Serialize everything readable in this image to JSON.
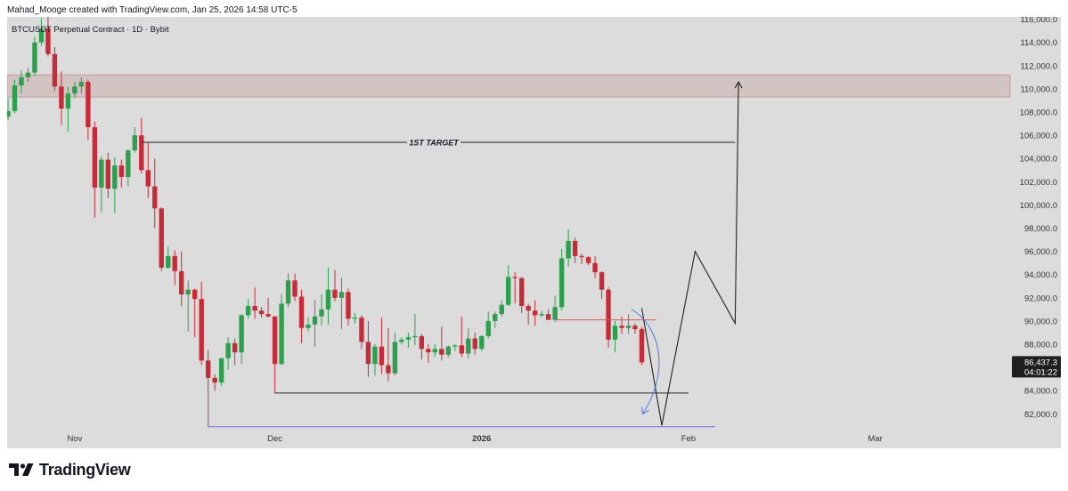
{
  "attribution": "Mahad_Mooge created with TradingView.com, Jan 25, 2026 14:58 UTC-5",
  "brand": "TradingView",
  "symbol_line": "BTCUSDT Perpetual Contract · 1D · Bybit",
  "colors": {
    "bg": "#dcdcdc",
    "up": "#2e9e4f",
    "down": "#c62b39",
    "zone_fill": "#d3c4c4",
    "zone_border": "#c59a9a",
    "line": "#222222",
    "purple": "#8e6bd6",
    "red_level": "#d85858",
    "blue_arrow": "#4f7ae3",
    "axis_text": "#333333",
    "price_label_bg": "#1e1e1e"
  },
  "chart_data": {
    "type": "candlestick",
    "y_axis": {
      "ticks": [
        "82,000.0",
        "84,000.0",
        "86,000.0",
        "88,000.0",
        "90,000.0",
        "92,000.0",
        "94,000.0",
        "96,000.0",
        "98,000.0",
        "100,000.0",
        "102,000.0",
        "104,000.0",
        "106,000.0",
        "108,000.0",
        "110,000.0",
        "112,000.0",
        "114,000.0",
        "116,000.0"
      ],
      "tick_values": [
        82000,
        84000,
        86000,
        88000,
        90000,
        92000,
        94000,
        96000,
        98000,
        100000,
        102000,
        104000,
        106000,
        108000,
        110000,
        112000,
        114000,
        116000
      ],
      "ylim": [
        80800,
        116200
      ]
    },
    "x_axis": {
      "start_date": "2025-10-22",
      "end_date": "2026-03-12",
      "labels": [
        {
          "text": "Nov",
          "date": "2025-11-01",
          "bold": false
        },
        {
          "text": "Dec",
          "date": "2025-12-01",
          "bold": false
        },
        {
          "text": "2026",
          "date": "2026-01-01",
          "bold": true
        },
        {
          "text": "Feb",
          "date": "2026-02-01",
          "bold": false
        },
        {
          "text": "Mar",
          "date": "2026-03-01",
          "bold": false
        }
      ]
    },
    "candles": [
      {
        "d": "2025-10-22",
        "o": 107600,
        "h": 109200,
        "l": 107300,
        "c": 108100
      },
      {
        "d": "2025-10-23",
        "o": 108100,
        "h": 110800,
        "l": 107900,
        "c": 110300
      },
      {
        "d": "2025-10-24",
        "o": 110300,
        "h": 111600,
        "l": 109600,
        "c": 111000
      },
      {
        "d": "2025-10-25",
        "o": 111000,
        "h": 111800,
        "l": 110600,
        "c": 111400
      },
      {
        "d": "2025-10-26",
        "o": 111400,
        "h": 114500,
        "l": 111100,
        "c": 114000
      },
      {
        "d": "2025-10-27",
        "o": 114000,
        "h": 116100,
        "l": 113700,
        "c": 115200
      },
      {
        "d": "2025-10-28",
        "o": 115200,
        "h": 116200,
        "l": 112800,
        "c": 113000
      },
      {
        "d": "2025-10-29",
        "o": 113000,
        "h": 113600,
        "l": 109800,
        "c": 110200
      },
      {
        "d": "2025-10-30",
        "o": 110200,
        "h": 111500,
        "l": 106900,
        "c": 108300
      },
      {
        "d": "2025-10-31",
        "o": 108300,
        "h": 110200,
        "l": 106300,
        "c": 109600
      },
      {
        "d": "2025-11-01",
        "o": 109600,
        "h": 110600,
        "l": 109200,
        "c": 110200
      },
      {
        "d": "2025-11-02",
        "o": 110200,
        "h": 111000,
        "l": 109600,
        "c": 110600
      },
      {
        "d": "2025-11-03",
        "o": 110600,
        "h": 110800,
        "l": 105600,
        "c": 106700
      },
      {
        "d": "2025-11-04",
        "o": 106700,
        "h": 107200,
        "l": 98900,
        "c": 101500
      },
      {
        "d": "2025-11-05",
        "o": 101500,
        "h": 104200,
        "l": 99400,
        "c": 103900
      },
      {
        "d": "2025-11-06",
        "o": 103900,
        "h": 104500,
        "l": 100600,
        "c": 101400
      },
      {
        "d": "2025-11-07",
        "o": 101400,
        "h": 104100,
        "l": 99300,
        "c": 103400
      },
      {
        "d": "2025-11-08",
        "o": 103400,
        "h": 103900,
        "l": 101500,
        "c": 102400
      },
      {
        "d": "2025-11-09",
        "o": 102400,
        "h": 104800,
        "l": 101600,
        "c": 104700
      },
      {
        "d": "2025-11-10",
        "o": 104700,
        "h": 106700,
        "l": 104500,
        "c": 106000
      },
      {
        "d": "2025-11-11",
        "o": 106000,
        "h": 107500,
        "l": 102700,
        "c": 103000
      },
      {
        "d": "2025-11-12",
        "o": 103000,
        "h": 105400,
        "l": 100600,
        "c": 101600
      },
      {
        "d": "2025-11-13",
        "o": 101600,
        "h": 104000,
        "l": 98000,
        "c": 99700
      },
      {
        "d": "2025-11-14",
        "o": 99700,
        "h": 99800,
        "l": 94300,
        "c": 94600
      },
      {
        "d": "2025-11-15",
        "o": 94600,
        "h": 96400,
        "l": 94500,
        "c": 95600
      },
      {
        "d": "2025-11-16",
        "o": 95600,
        "h": 96100,
        "l": 93100,
        "c": 94300
      },
      {
        "d": "2025-11-17",
        "o": 94300,
        "h": 96000,
        "l": 91300,
        "c": 92300
      },
      {
        "d": "2025-11-18",
        "o": 92300,
        "h": 93500,
        "l": 89100,
        "c": 92700
      },
      {
        "d": "2025-11-19",
        "o": 92700,
        "h": 92800,
        "l": 88600,
        "c": 91900
      },
      {
        "d": "2025-11-20",
        "o": 91900,
        "h": 93400,
        "l": 86200,
        "c": 86600
      },
      {
        "d": "2025-11-21",
        "o": 86600,
        "h": 87500,
        "l": 80900,
        "c": 85100
      },
      {
        "d": "2025-11-22",
        "o": 85100,
        "h": 85400,
        "l": 84000,
        "c": 84700
      },
      {
        "d": "2025-11-23",
        "o": 84700,
        "h": 86800,
        "l": 84400,
        "c": 86800
      },
      {
        "d": "2025-11-24",
        "o": 86800,
        "h": 88600,
        "l": 85800,
        "c": 88100
      },
      {
        "d": "2025-11-25",
        "o": 88100,
        "h": 88500,
        "l": 86200,
        "c": 87300
      },
      {
        "d": "2025-11-26",
        "o": 87300,
        "h": 90600,
        "l": 86300,
        "c": 90500
      },
      {
        "d": "2025-11-27",
        "o": 90500,
        "h": 91900,
        "l": 90200,
        "c": 91300
      },
      {
        "d": "2025-11-28",
        "o": 91300,
        "h": 92900,
        "l": 90200,
        "c": 90900
      },
      {
        "d": "2025-11-29",
        "o": 90900,
        "h": 91200,
        "l": 90300,
        "c": 90600
      },
      {
        "d": "2025-11-30",
        "o": 90600,
        "h": 92000,
        "l": 90300,
        "c": 90400
      },
      {
        "d": "2025-12-01",
        "o": 90400,
        "h": 90400,
        "l": 83800,
        "c": 86300
      },
      {
        "d": "2025-12-02",
        "o": 86300,
        "h": 92300,
        "l": 86200,
        "c": 91500
      },
      {
        "d": "2025-12-03",
        "o": 91500,
        "h": 94100,
        "l": 91200,
        "c": 93500
      },
      {
        "d": "2025-12-04",
        "o": 93500,
        "h": 94100,
        "l": 91700,
        "c": 92100
      },
      {
        "d": "2025-12-05",
        "o": 92100,
        "h": 92700,
        "l": 88100,
        "c": 89400
      },
      {
        "d": "2025-12-06",
        "o": 89400,
        "h": 90300,
        "l": 89100,
        "c": 89700
      },
      {
        "d": "2025-12-07",
        "o": 89700,
        "h": 91800,
        "l": 87800,
        "c": 90400
      },
      {
        "d": "2025-12-08",
        "o": 90400,
        "h": 92300,
        "l": 89600,
        "c": 91000
      },
      {
        "d": "2025-12-09",
        "o": 91000,
        "h": 94600,
        "l": 89700,
        "c": 92700
      },
      {
        "d": "2025-12-10",
        "o": 92700,
        "h": 94400,
        "l": 91700,
        "c": 92000
      },
      {
        "d": "2025-12-11",
        "o": 92000,
        "h": 93700,
        "l": 89300,
        "c": 92500
      },
      {
        "d": "2025-12-12",
        "o": 92500,
        "h": 92800,
        "l": 89600,
        "c": 90200
      },
      {
        "d": "2025-12-13",
        "o": 90200,
        "h": 90700,
        "l": 89800,
        "c": 90300
      },
      {
        "d": "2025-12-14",
        "o": 90300,
        "h": 90500,
        "l": 87600,
        "c": 88200
      },
      {
        "d": "2025-12-15",
        "o": 88200,
        "h": 90000,
        "l": 85200,
        "c": 86300
      },
      {
        "d": "2025-12-16",
        "o": 86300,
        "h": 88000,
        "l": 85300,
        "c": 87800
      },
      {
        "d": "2025-12-17",
        "o": 87800,
        "h": 90300,
        "l": 85400,
        "c": 86200
      },
      {
        "d": "2025-12-18",
        "o": 86200,
        "h": 89400,
        "l": 84800,
        "c": 85500
      },
      {
        "d": "2025-12-19",
        "o": 85500,
        "h": 89000,
        "l": 85300,
        "c": 88200
      },
      {
        "d": "2025-12-20",
        "o": 88200,
        "h": 88600,
        "l": 88000,
        "c": 88400
      },
      {
        "d": "2025-12-21",
        "o": 88400,
        "h": 89000,
        "l": 87700,
        "c": 88600
      },
      {
        "d": "2025-12-22",
        "o": 88600,
        "h": 90600,
        "l": 87900,
        "c": 88700
      },
      {
        "d": "2025-12-23",
        "o": 88700,
        "h": 88900,
        "l": 86700,
        "c": 87600
      },
      {
        "d": "2025-12-24",
        "o": 87600,
        "h": 88000,
        "l": 86400,
        "c": 87300
      },
      {
        "d": "2025-12-25",
        "o": 87300,
        "h": 88000,
        "l": 86900,
        "c": 87600
      },
      {
        "d": "2025-12-26",
        "o": 87600,
        "h": 89500,
        "l": 86600,
        "c": 87100
      },
      {
        "d": "2025-12-27",
        "o": 87100,
        "h": 87900,
        "l": 86900,
        "c": 87800
      },
      {
        "d": "2025-12-28",
        "o": 87800,
        "h": 88000,
        "l": 87400,
        "c": 87900
      },
      {
        "d": "2025-12-29",
        "o": 87900,
        "h": 90400,
        "l": 86900,
        "c": 87200
      },
      {
        "d": "2025-12-30",
        "o": 87200,
        "h": 89400,
        "l": 86800,
        "c": 88500
      },
      {
        "d": "2025-12-31",
        "o": 88500,
        "h": 89000,
        "l": 87100,
        "c": 87600
      },
      {
        "d": "2026-01-01",
        "o": 87600,
        "h": 88800,
        "l": 87400,
        "c": 88700
      },
      {
        "d": "2026-01-02",
        "o": 88700,
        "h": 90800,
        "l": 88500,
        "c": 90000
      },
      {
        "d": "2026-01-03",
        "o": 90000,
        "h": 90800,
        "l": 89400,
        "c": 90600
      },
      {
        "d": "2026-01-04",
        "o": 90600,
        "h": 91800,
        "l": 90400,
        "c": 91400
      },
      {
        "d": "2026-01-05",
        "o": 91400,
        "h": 94800,
        "l": 91300,
        "c": 93800
      },
      {
        "d": "2026-01-06",
        "o": 93800,
        "h": 94200,
        "l": 91500,
        "c": 93700
      },
      {
        "d": "2026-01-07",
        "o": 93700,
        "h": 93800,
        "l": 90700,
        "c": 91300
      },
      {
        "d": "2026-01-08",
        "o": 91300,
        "h": 91500,
        "l": 89700,
        "c": 90900
      },
      {
        "d": "2026-01-09",
        "o": 90900,
        "h": 91800,
        "l": 89600,
        "c": 90500
      },
      {
        "d": "2026-01-10",
        "o": 90500,
        "h": 90900,
        "l": 90300,
        "c": 90600
      },
      {
        "d": "2026-01-11",
        "o": 90600,
        "h": 91000,
        "l": 90200,
        "c": 90100
      },
      {
        "d": "2026-01-12",
        "o": 90100,
        "h": 92200,
        "l": 89900,
        "c": 91200
      },
      {
        "d": "2026-01-13",
        "o": 91200,
        "h": 96200,
        "l": 90900,
        "c": 95400
      },
      {
        "d": "2026-01-14",
        "o": 95400,
        "h": 97900,
        "l": 94700,
        "c": 96900
      },
      {
        "d": "2026-01-15",
        "o": 96900,
        "h": 97200,
        "l": 95000,
        "c": 95600
      },
      {
        "d": "2026-01-16",
        "o": 95600,
        "h": 95800,
        "l": 94900,
        "c": 95500
      },
      {
        "d": "2026-01-17",
        "o": 95500,
        "h": 95600,
        "l": 94800,
        "c": 95000
      },
      {
        "d": "2026-01-18",
        "o": 95000,
        "h": 95600,
        "l": 93700,
        "c": 94200
      },
      {
        "d": "2026-01-19",
        "o": 94200,
        "h": 94300,
        "l": 91900,
        "c": 92700
      },
      {
        "d": "2026-01-20",
        "o": 92700,
        "h": 92900,
        "l": 87700,
        "c": 88400
      },
      {
        "d": "2026-01-21",
        "o": 88400,
        "h": 90000,
        "l": 87300,
        "c": 89600
      },
      {
        "d": "2026-01-22",
        "o": 89600,
        "h": 90400,
        "l": 88900,
        "c": 89400
      },
      {
        "d": "2026-01-23",
        "o": 89400,
        "h": 90600,
        "l": 88900,
        "c": 89600
      },
      {
        "d": "2026-01-24",
        "o": 89600,
        "h": 89800,
        "l": 88900,
        "c": 89300
      },
      {
        "d": "2026-01-25",
        "o": 89300,
        "h": 89500,
        "l": 86200,
        "c": 86437.3
      }
    ],
    "annotations": {
      "resistance_zone": {
        "low": 109300,
        "high": 111200,
        "from": "2025-10-22",
        "to": "2026-03-12"
      },
      "first_target": {
        "label": "1ST TARGET",
        "price": 105400,
        "from": "2025-11-11",
        "to": "2026-02-08"
      },
      "support_black": {
        "price": 83800,
        "from": "2025-12-01",
        "to": "2026-02-01"
      },
      "support_purple": {
        "price": 80900,
        "from": "2025-11-21",
        "to": "2026-02-05"
      },
      "red_level": {
        "price": 90100,
        "from": "2026-01-12",
        "to": "2026-01-25"
      },
      "projection_path": [
        {
          "d": "2026-01-25",
          "p": 91100
        },
        {
          "d": "2026-01-28",
          "p": 81000
        },
        {
          "d": "2026-02-02",
          "p": 96000
        },
        {
          "d": "2026-02-08",
          "p": 89800
        },
        {
          "d": "2026-02-08.5",
          "p": 110600
        }
      ],
      "blue_arrow": {
        "from": {
          "d": "2026-01-24",
          "p": 91000
        },
        "to": {
          "d": "2026-01-25",
          "p": 82000
        }
      }
    },
    "last_price": {
      "value": "86,437.3",
      "countdown": "04:01:22"
    }
  }
}
